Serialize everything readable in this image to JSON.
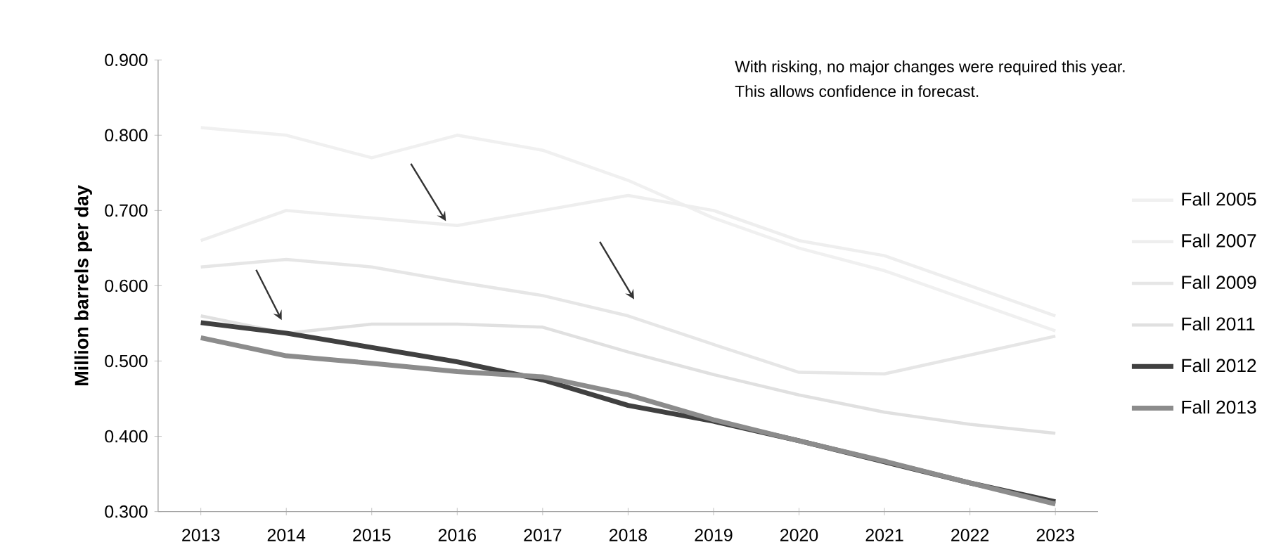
{
  "chart_data": {
    "type": "line",
    "ylabel": "Million barrels per day",
    "categories": [
      "2013",
      "2014",
      "2015",
      "2016",
      "2017",
      "2018",
      "2019",
      "2020",
      "2021",
      "2022",
      "2023"
    ],
    "series": [
      {
        "name": "Fall 2005",
        "color": "#f0f0f0",
        "values": [
          0.81,
          0.8,
          0.77,
          0.8,
          0.78,
          0.74,
          0.69,
          0.65,
          0.62,
          0.58,
          0.54
        ]
      },
      {
        "name": "Fall 2007",
        "color": "#eeeeee",
        "values": [
          0.66,
          0.7,
          0.69,
          0.68,
          0.7,
          0.72,
          0.7,
          0.66,
          0.64,
          0.6,
          0.56
        ]
      },
      {
        "name": "Fall 2009",
        "color": "#e6e6e6",
        "values": [
          0.625,
          0.635,
          0.625,
          0.605,
          0.587,
          0.56,
          0.522,
          0.485,
          0.483,
          0.508,
          0.533
        ]
      },
      {
        "name": "Fall 2011",
        "color": "#e0e0e0",
        "values": [
          0.56,
          0.537,
          0.549,
          0.549,
          0.545,
          0.512,
          0.482,
          0.455,
          0.432,
          0.416,
          0.404
        ]
      },
      {
        "name": "Fall 2012",
        "color": "#404040",
        "values": [
          0.551,
          0.537,
          0.518,
          0.499,
          0.475,
          0.441,
          0.42,
          0.394,
          0.366,
          0.338,
          0.313
        ]
      },
      {
        "name": "Fall 2013",
        "color": "#8c8c8c",
        "values": [
          0.531,
          0.507,
          0.497,
          0.486,
          0.479,
          0.455,
          0.422,
          0.394,
          0.367,
          0.338,
          0.31
        ]
      }
    ],
    "ylim": [
      0.3,
      0.9
    ],
    "yticks": [
      {
        "value": 0.3,
        "label": "0.300"
      },
      {
        "value": 0.4,
        "label": "0.400"
      },
      {
        "value": 0.5,
        "label": "0.500"
      },
      {
        "value": 0.6,
        "label": "0.600"
      },
      {
        "value": 0.7,
        "label": "0.700"
      },
      {
        "value": 0.8,
        "label": "0.800"
      },
      {
        "value": 0.9,
        "label": "0.900"
      }
    ],
    "legend": "right",
    "annotations": [
      "With risking, no major changes were required this year.",
      "This allows confidence in forecast."
    ]
  }
}
